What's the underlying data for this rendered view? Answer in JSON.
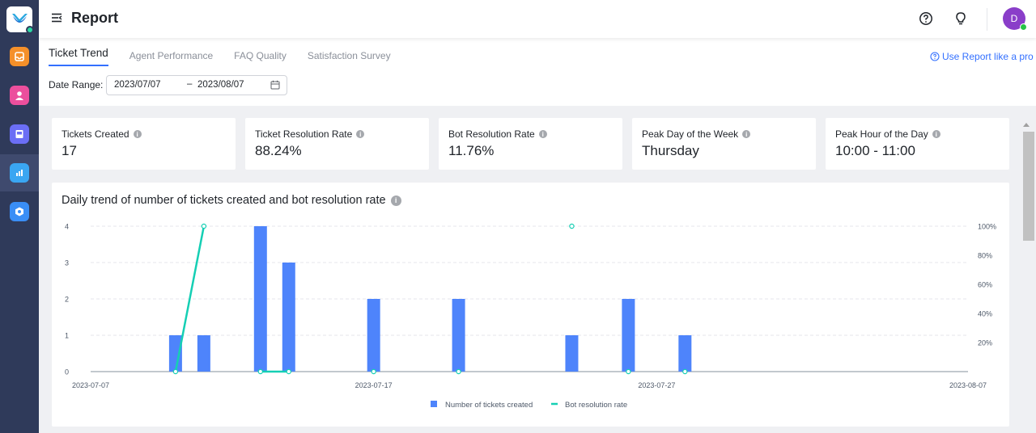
{
  "header": {
    "title": "Report",
    "avatar_initial": "D"
  },
  "nav": {
    "items": [
      {
        "icon": "inbox-icon",
        "color": "#f5902a"
      },
      {
        "icon": "contacts-icon",
        "color": "#ec4f9d"
      },
      {
        "icon": "knowledge-base-icon",
        "color": "#6b6ef5"
      },
      {
        "icon": "report-icon",
        "color": "#3aa6f2"
      },
      {
        "icon": "settings-icon",
        "color": "#3a8ef6"
      }
    ]
  },
  "tabs": [
    {
      "label": "Ticket Trend",
      "active": true
    },
    {
      "label": "Agent Performance",
      "active": false
    },
    {
      "label": "FAQ Quality",
      "active": false
    },
    {
      "label": "Satisfaction Survey",
      "active": false
    }
  ],
  "pro_link": "Use Report like a pro",
  "date_range": {
    "label": "Date Range:",
    "start": "2023/07/07",
    "separator": "–",
    "end": "2023/08/07"
  },
  "stats": [
    {
      "label": "Tickets Created",
      "value": "17"
    },
    {
      "label": "Ticket Resolution Rate",
      "value": "88.24%"
    },
    {
      "label": "Bot Resolution Rate",
      "value": "11.76%"
    },
    {
      "label": "Peak Day of the Week",
      "value": "Thursday"
    },
    {
      "label": "Peak Hour of the Day",
      "value": "10:00 - 11:00"
    }
  ],
  "chart": {
    "title": "Daily trend of number of tickets created and bot resolution rate",
    "legend": [
      "Number of tickets created",
      "Bot resolution rate"
    ]
  },
  "colors": {
    "bar": "#4e84fb",
    "line": "#15cfb4",
    "accent": "#3370ff"
  },
  "chart_data": {
    "type": "bar",
    "x_tick_labels": [
      "2023-07-07",
      "2023-07-17",
      "2023-07-27",
      "2023-08-07"
    ],
    "left_ticks": [
      "0",
      "1",
      "2",
      "3",
      "4"
    ],
    "right_ticks": [
      "20%",
      "40%",
      "60%",
      "80%",
      "100%"
    ],
    "ylim": [
      0,
      4
    ],
    "y2lim": [
      0,
      100
    ],
    "series": [
      {
        "name": "Number of tickets created",
        "type": "bar",
        "points": [
          {
            "x": "2023-07-10",
            "y": 1
          },
          {
            "x": "2023-07-11",
            "y": 1
          },
          {
            "x": "2023-07-13",
            "y": 4
          },
          {
            "x": "2023-07-14",
            "y": 3
          },
          {
            "x": "2023-07-17",
            "y": 2
          },
          {
            "x": "2023-07-20",
            "y": 2
          },
          {
            "x": "2023-07-24",
            "y": 1
          },
          {
            "x": "2023-07-26",
            "y": 2
          },
          {
            "x": "2023-07-28",
            "y": 1
          }
        ]
      },
      {
        "name": "Bot resolution rate",
        "type": "line",
        "points": [
          {
            "x": "2023-07-10",
            "y": 0
          },
          {
            "x": "2023-07-11",
            "y": 100
          },
          {
            "x": "2023-07-13",
            "y": 0
          },
          {
            "x": "2023-07-14",
            "y": 0
          },
          {
            "x": "2023-07-17",
            "y": 0
          },
          {
            "x": "2023-07-20",
            "y": 0
          },
          {
            "x": "2023-07-24",
            "y": 100
          },
          {
            "x": "2023-07-26",
            "y": 0
          },
          {
            "x": "2023-07-28",
            "y": 0
          }
        ]
      }
    ]
  }
}
